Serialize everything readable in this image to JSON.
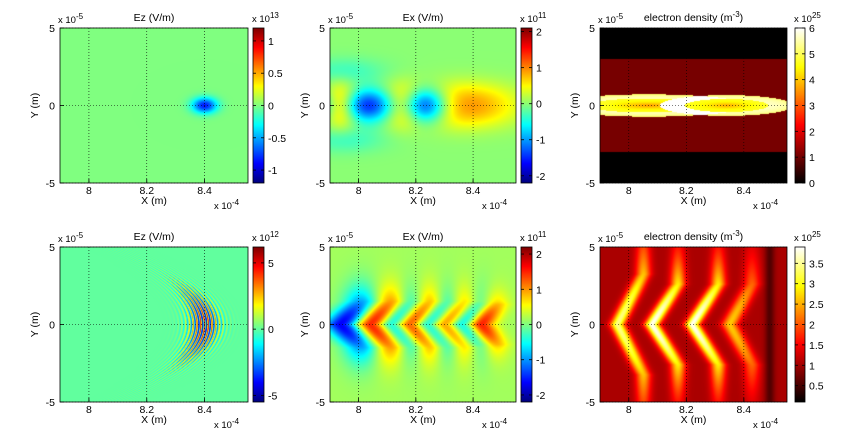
{
  "chart_data": [
    {
      "type": "heatmap",
      "title": "Ez (V/m)",
      "xlabel": "X (m)",
      "ylabel": "Y (m)",
      "xlim": [
        0.00079,
        0.000855
      ],
      "ylim": [
        -5e-05,
        5e-05
      ],
      "x_ticks": [
        "8",
        "8.2",
        "8.4"
      ],
      "x_tick_values": [
        0.0008,
        0.00082,
        0.00084
      ],
      "y_ticks": [
        "5",
        "0",
        "-5"
      ],
      "y_tick_values": [
        5e-05,
        0,
        -5e-05
      ],
      "x_exponent": "x 10",
      "x_exponent_power": "-4",
      "y_exponent": "x 10",
      "y_exponent_power": "-5",
      "colorbar": {
        "exponent": "x 10",
        "exponent_power": "13",
        "range": [
          -1.2,
          1.2
        ],
        "ticks": [
          "1",
          "0.5",
          "0",
          "-0.5",
          "-1"
        ],
        "tick_values": [
          1,
          0.5,
          0,
          -0.5,
          -1
        ]
      },
      "colormap": "jet",
      "background_value": 0.0,
      "features": [
        {
          "kind": "gaussian",
          "x": 0.00084,
          "y": 0,
          "sx": 3e-06,
          "sy": 3.5e-06,
          "value": -0.85,
          "rotation": 0
        }
      ]
    },
    {
      "type": "heatmap",
      "title": "Ex (V/m)",
      "xlabel": "X (m)",
      "ylabel": "Y (m)",
      "xlim": [
        0.00079,
        0.000855
      ],
      "ylim": [
        -5e-05,
        5e-05
      ],
      "x_ticks": [
        "8",
        "8.2",
        "8.4"
      ],
      "x_tick_values": [
        0.0008,
        0.00082,
        0.00084
      ],
      "y_ticks": [
        "5",
        "0",
        "-5"
      ],
      "y_tick_values": [
        5e-05,
        0,
        -5e-05
      ],
      "x_exponent": "x 10",
      "x_exponent_power": "-4",
      "y_exponent": "x 10",
      "y_exponent_power": "-5",
      "colorbar": {
        "exponent": "x 10",
        "exponent_power": "11",
        "range": [
          -2.2,
          2.1
        ],
        "ticks": [
          "2",
          "1",
          "0",
          "-1",
          "-2"
        ],
        "tick_values": [
          2,
          1,
          0,
          -1,
          -2
        ]
      },
      "colormap": "jet",
      "background_value": 0.0,
      "features": [
        {
          "kind": "gaussian",
          "x": 0.0007935,
          "y": 0,
          "sx": 4.5e-06,
          "sy": 9e-06,
          "value": 1.9,
          "rotation": 0
        },
        {
          "kind": "gaussian",
          "x": 0.000806,
          "y": 0,
          "sx": 2.3e-05,
          "sy": 7.5e-06,
          "value": -1.9,
          "rotation": 0
        },
        {
          "kind": "gaussian",
          "x": 0.000816,
          "y": 0,
          "sx": 5.5e-06,
          "sy": 8.5e-06,
          "value": 2.0,
          "rotation": 0
        },
        {
          "kind": "gaussian",
          "x": 0.000822,
          "y": 0,
          "sx": 5.5e-06,
          "sy": 8e-06,
          "value": -1.8,
          "rotation": 0
        },
        {
          "kind": "gaussian",
          "x": 0.000834,
          "y": 0,
          "sx": 1.4e-05,
          "sy": 9e-06,
          "value": 1.7,
          "rotation": 0
        },
        {
          "kind": "gaussian",
          "x": 0.000795,
          "y": 2.2e-05,
          "sx": 1e-05,
          "sy": 6e-06,
          "value": -0.35,
          "rotation": 0
        },
        {
          "kind": "gaussian",
          "x": 0.000795,
          "y": -2.2e-05,
          "sx": 1e-05,
          "sy": 6e-06,
          "value": -0.35,
          "rotation": 0
        }
      ]
    },
    {
      "type": "heatmap",
      "title": "electron density (m",
      "title_power": "-3",
      "title_suffix": ")",
      "xlabel": "X (m)",
      "ylabel": "Y (m)",
      "xlim": [
        0.00079,
        0.000855
      ],
      "ylim": [
        -5e-05,
        5e-05
      ],
      "x_ticks": [
        "8",
        "8.2",
        "8.4"
      ],
      "x_tick_values": [
        0.0008,
        0.00082,
        0.00084
      ],
      "y_ticks": [
        "5",
        "0",
        "-5"
      ],
      "y_tick_values": [
        5e-05,
        0,
        -5e-05
      ],
      "x_exponent": "x 10",
      "x_exponent_power": "-4",
      "y_exponent": "x 10",
      "y_exponent_power": "-5",
      "colorbar": {
        "exponent": "x 10",
        "exponent_power": "25",
        "range": [
          0,
          6
        ],
        "ticks": [
          "6",
          "5",
          "4",
          "3",
          "2",
          "1",
          "0"
        ],
        "tick_values": [
          6,
          5,
          4,
          3,
          2,
          1,
          0
        ]
      },
      "colormap": "hot",
      "background_value": 0.0,
      "features": [
        {
          "kind": "band",
          "y_min": -3e-05,
          "y_max": 3e-05,
          "value": 1.05
        },
        {
          "kind": "bubble",
          "x": 0.000807,
          "y": 0,
          "rx": 2.15e-05,
          "ry": 4.5e-06,
          "value": 0.15,
          "wall": 4.5,
          "wall_width": 6e-06
        },
        {
          "kind": "bubble",
          "x": 0.000834,
          "y": 0,
          "rx": 1.45e-05,
          "ry": 4.2e-06,
          "value": 0.15,
          "wall": 4.5,
          "wall_width": 6e-06
        },
        {
          "kind": "gaussian",
          "x": 0.000793,
          "y": 0,
          "sx": 3e-06,
          "sy": 2.5e-06,
          "value": 0.1,
          "rotation": 0
        },
        {
          "kind": "gaussian",
          "x": 0.000851,
          "y": 0,
          "sx": 4e-06,
          "sy": 3e-06,
          "value": 0.1,
          "rotation": 0
        }
      ]
    },
    {
      "type": "heatmap",
      "title": "Ez (V/m)",
      "xlabel": "X (m)",
      "ylabel": "Y (m)",
      "xlim": [
        0.00079,
        0.000855
      ],
      "ylim": [
        -5e-05,
        5e-05
      ],
      "x_ticks": [
        "8",
        "8.2",
        "8.4"
      ],
      "x_tick_values": [
        0.0008,
        0.00082,
        0.00084
      ],
      "y_ticks": [
        "5",
        "0",
        "-5"
      ],
      "y_tick_values": [
        5e-05,
        0,
        -5e-05
      ],
      "x_exponent": "x 10",
      "x_exponent_power": "-4",
      "y_exponent": "x 10",
      "y_exponent_power": "-5",
      "colorbar": {
        "exponent": "x 10",
        "exponent_power": "12",
        "range": [
          -5.5,
          6.2
        ],
        "ticks": [
          "5",
          "0",
          "-5"
        ],
        "tick_values": [
          5,
          0,
          -5
        ]
      },
      "colormap": "jet",
      "background_value": 0.0,
      "features": [
        {
          "kind": "wavepacket",
          "x": 0.00084,
          "y": 0,
          "sx": 4e-06,
          "sy": 2e-05,
          "amplitude": 5.0,
          "wavelength": 1.3e-06,
          "curvature": 5e-06
        }
      ]
    },
    {
      "type": "heatmap",
      "title": "Ex (V/m)",
      "xlabel": "X (m)",
      "ylabel": "Y (m)",
      "xlim": [
        0.00079,
        0.000855
      ],
      "ylim": [
        -5e-05,
        5e-05
      ],
      "x_ticks": [
        "8",
        "8.2",
        "8.4"
      ],
      "x_tick_values": [
        0.0008,
        0.00082,
        0.00084
      ],
      "y_ticks": [
        "5",
        "0",
        "-5"
      ],
      "y_tick_values": [
        5e-05,
        0,
        -5e-05
      ],
      "x_exponent": "x 10",
      "x_exponent_power": "-4",
      "y_exponent": "x 10",
      "y_exponent_power": "-5",
      "colorbar": {
        "exponent": "x 10",
        "exponent_power": "11",
        "range": [
          -2.2,
          2.2
        ],
        "ticks": [
          "2",
          "1",
          "0",
          "-1",
          "-2"
        ],
        "tick_values": [
          2,
          1,
          0,
          -1,
          -2
        ]
      },
      "colormap": "jet",
      "background_value": 0.15,
      "features": [
        {
          "kind": "chevron",
          "x": 0.000794,
          "y": 0,
          "sx": 4.5e-06,
          "sy": 1.5e-05,
          "value": -1.9,
          "bend": 7e-06
        },
        {
          "kind": "chevron",
          "x": 0.000805,
          "y": 0,
          "sx": 4.5e-06,
          "sy": 1.5e-05,
          "value": 1.9,
          "bend": 7e-06
        },
        {
          "kind": "chevron",
          "x": 0.000811,
          "y": 0,
          "sx": 4e-06,
          "sy": 1.5e-05,
          "value": -1.7,
          "bend": 7e-06
        },
        {
          "kind": "chevron",
          "x": 0.000818,
          "y": 0,
          "sx": 4e-06,
          "sy": 1.5e-05,
          "value": 1.9,
          "bend": 7e-06
        },
        {
          "kind": "chevron",
          "x": 0.000824,
          "y": 0,
          "sx": 4e-06,
          "sy": 1.5e-05,
          "value": -1.7,
          "bend": 7e-06
        },
        {
          "kind": "chevron",
          "x": 0.00083,
          "y": 0,
          "sx": 4e-06,
          "sy": 1.5e-05,
          "value": 1.9,
          "bend": 7e-06
        },
        {
          "kind": "chevron",
          "x": 0.0008355,
          "y": 0,
          "sx": 4e-06,
          "sy": 1.5e-05,
          "value": -1.6,
          "bend": 7e-06
        },
        {
          "kind": "chevron",
          "x": 0.000842,
          "y": 0,
          "sx": 3.5e-06,
          "sy": 1.3e-05,
          "value": 1.7,
          "bend": 5e-06
        }
      ]
    },
    {
      "type": "heatmap",
      "title": "electron density (m",
      "title_power": "-3",
      "title_suffix": ")",
      "xlabel": "X (m)",
      "ylabel": "Y (m)",
      "xlim": [
        0.00079,
        0.000855
      ],
      "ylim": [
        -5e-05,
        5e-05
      ],
      "x_ticks": [
        "8",
        "8.2",
        "8.4"
      ],
      "x_tick_values": [
        0.0008,
        0.00082,
        0.00084
      ],
      "y_ticks": [
        "5",
        "0",
        "-5"
      ],
      "y_tick_values": [
        5e-05,
        0,
        -5e-05
      ],
      "x_exponent": "x 10",
      "x_exponent_power": "-4",
      "y_exponent": "x 10",
      "y_exponent_power": "-5",
      "colorbar": {
        "exponent": "x 10",
        "exponent_power": "25",
        "range": [
          0.1,
          3.9
        ],
        "ticks": [
          "3.5",
          "3",
          "2.5",
          "2",
          "1.5",
          "1",
          "0.5"
        ],
        "tick_values": [
          3.5,
          3,
          2.5,
          2,
          1.5,
          1,
          0.5
        ]
      },
      "colormap": "hot",
      "background_value": 1.05,
      "features": [
        {
          "kind": "chevron_ridge",
          "x": 0.000796,
          "y": 0,
          "value": 2.4,
          "width": 1.8e-06,
          "bend": 7e-06,
          "span": 2.5e-05
        },
        {
          "kind": "chevron_ridge",
          "x": 0.000808,
          "y": 0,
          "value": 2.8,
          "width": 1.8e-06,
          "bend": 7e-06,
          "span": 2e-05
        },
        {
          "kind": "chevron_ridge",
          "x": 0.000822,
          "y": 0,
          "value": 2.8,
          "width": 1.8e-06,
          "bend": 7e-06,
          "span": 2e-05
        },
        {
          "kind": "chevron_ridge",
          "x": 0.000835,
          "y": 0,
          "value": 1.6,
          "width": 2e-06,
          "bend": 6e-06,
          "span": 2e-05
        },
        {
          "kind": "dark_line",
          "x": 0.000849,
          "value": 0.5,
          "width": 1.2e-06
        }
      ]
    }
  ]
}
